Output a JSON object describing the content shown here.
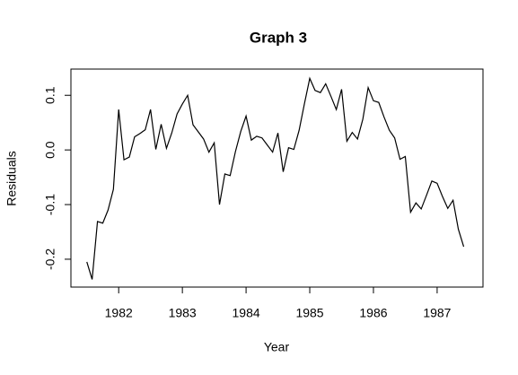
{
  "chart_data": {
    "type": "line",
    "title": "Graph 3",
    "x_label": "Year",
    "y_label": "Residuals",
    "x": [
      1981.5,
      1981.583,
      1981.667,
      1981.75,
      1981.833,
      1981.917,
      1982.0,
      1982.083,
      1982.167,
      1982.25,
      1982.333,
      1982.417,
      1982.5,
      1982.583,
      1982.667,
      1982.75,
      1982.833,
      1982.917,
      1983.0,
      1983.083,
      1983.167,
      1983.25,
      1983.333,
      1983.417,
      1983.5,
      1983.583,
      1983.667,
      1983.75,
      1983.833,
      1983.917,
      1984.0,
      1984.083,
      1984.167,
      1984.25,
      1984.333,
      1984.417,
      1984.5,
      1984.583,
      1984.667,
      1984.75,
      1984.833,
      1984.917,
      1985.0,
      1985.083,
      1985.167,
      1985.25,
      1985.333,
      1985.417,
      1985.5,
      1985.583,
      1985.667,
      1985.75,
      1985.833,
      1985.917,
      1986.0,
      1986.083,
      1986.167,
      1986.25,
      1986.333,
      1986.417,
      1986.5,
      1986.583,
      1986.667,
      1986.75,
      1986.833,
      1986.917,
      1987.0,
      1987.083,
      1987.167,
      1987.25,
      1987.333,
      1987.417
    ],
    "series": [
      {
        "color": "#000000",
        "values": [
          -0.205,
          -0.237,
          -0.131,
          -0.134,
          -0.11,
          -0.072,
          0.074,
          -0.018,
          -0.013,
          0.024,
          0.03,
          0.037,
          0.074,
          0.001,
          0.047,
          0.003,
          0.031,
          0.066,
          0.084,
          0.1,
          0.046,
          0.033,
          0.02,
          -0.004,
          0.013,
          -0.1,
          -0.044,
          -0.047,
          -0.003,
          0.034,
          0.062,
          0.018,
          0.025,
          0.022,
          0.009,
          -0.004,
          0.031,
          -0.04,
          0.004,
          0.001,
          0.036,
          0.085,
          0.131,
          0.109,
          0.105,
          0.121,
          0.098,
          0.074,
          0.111,
          0.016,
          0.032,
          0.02,
          0.056,
          0.114,
          0.09,
          0.087,
          0.06,
          0.036,
          0.022,
          -0.017,
          -0.012,
          -0.114,
          -0.097,
          -0.108,
          -0.083,
          -0.057,
          -0.061,
          -0.085,
          -0.107,
          -0.092,
          -0.145,
          -0.177
        ]
      }
    ],
    "xlim": [
      1981.25,
      1987.72
    ],
    "ylim": [
      -0.251,
      0.148
    ],
    "xticks": [
      1982,
      1983,
      1984,
      1985,
      1986,
      1987
    ],
    "yticks": [
      -0.2,
      -0.1,
      {
        "value": 0,
        "label": "0.0"
      },
      0.1
    ]
  }
}
